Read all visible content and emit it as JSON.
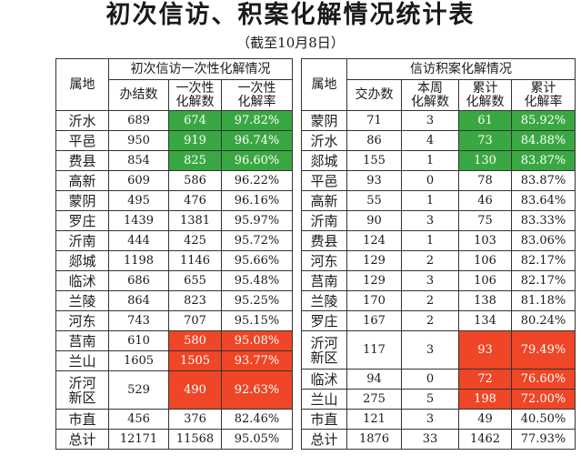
{
  "title": "初次信访、积案化解情况统计表",
  "subtitle": "（截至10月8日）",
  "colors": {
    "green": "#3aa842",
    "red": "#ee4626"
  },
  "left": {
    "group_header": "初次信访一次性化解情况",
    "col_area": "属地",
    "col_a": "办结数",
    "col_b_1": "一次性",
    "col_b_2": "化解数",
    "col_c_1": "一次性",
    "col_c_2": "化解率",
    "rows": [
      {
        "area_1": "沂水",
        "area_2": "",
        "a": "689",
        "b": "674",
        "c": "97.82%",
        "hl": "g"
      },
      {
        "area_1": "平邑",
        "area_2": "",
        "a": "950",
        "b": "919",
        "c": "96.74%",
        "hl": "g"
      },
      {
        "area_1": "费县",
        "area_2": "",
        "a": "854",
        "b": "825",
        "c": "96.60%",
        "hl": "g"
      },
      {
        "area_1": "高新",
        "area_2": "",
        "a": "609",
        "b": "586",
        "c": "96.22%",
        "hl": ""
      },
      {
        "area_1": "蒙阴",
        "area_2": "",
        "a": "495",
        "b": "476",
        "c": "96.16%",
        "hl": ""
      },
      {
        "area_1": "罗庄",
        "area_2": "",
        "a": "1439",
        "b": "1381",
        "c": "95.97%",
        "hl": ""
      },
      {
        "area_1": "沂南",
        "area_2": "",
        "a": "444",
        "b": "425",
        "c": "95.72%",
        "hl": ""
      },
      {
        "area_1": "郯城",
        "area_2": "",
        "a": "1198",
        "b": "1146",
        "c": "95.66%",
        "hl": ""
      },
      {
        "area_1": "临沭",
        "area_2": "",
        "a": "686",
        "b": "655",
        "c": "95.48%",
        "hl": ""
      },
      {
        "area_1": "兰陵",
        "area_2": "",
        "a": "864",
        "b": "823",
        "c": "95.25%",
        "hl": ""
      },
      {
        "area_1": "河东",
        "area_2": "",
        "a": "743",
        "b": "707",
        "c": "95.15%",
        "hl": ""
      },
      {
        "area_1": "莒南",
        "area_2": "",
        "a": "610",
        "b": "580",
        "c": "95.08%",
        "hl": "r"
      },
      {
        "area_1": "兰山",
        "area_2": "",
        "a": "1605",
        "b": "1505",
        "c": "93.77%",
        "hl": "r"
      },
      {
        "area_1": "沂河",
        "area_2": "新区",
        "a": "529",
        "b": "490",
        "c": "92.63%",
        "hl": "r"
      },
      {
        "area_1": "市直",
        "area_2": "",
        "a": "456",
        "b": "376",
        "c": "82.46%",
        "hl": ""
      },
      {
        "area_1": "总计",
        "area_2": "",
        "a": "12171",
        "b": "11568",
        "c": "95.05%",
        "hl": ""
      }
    ]
  },
  "right": {
    "group_header": "信访积案化解情况",
    "col_area": "属地",
    "col_a": "交办数",
    "col_b_1": "本周",
    "col_b_2": "化解数",
    "col_c_1": "累计",
    "col_c_2": "化解数",
    "col_d_1": "累计",
    "col_d_2": "化解率",
    "rows": [
      {
        "area_1": "蒙阴",
        "area_2": "",
        "a": "71",
        "b": "3",
        "c": "61",
        "d": "85.92%",
        "hl": "g"
      },
      {
        "area_1": "沂水",
        "area_2": "",
        "a": "86",
        "b": "4",
        "c": "73",
        "d": "84.88%",
        "hl": "g"
      },
      {
        "area_1": "郯城",
        "area_2": "",
        "a": "155",
        "b": "1",
        "c": "130",
        "d": "83.87%",
        "hl": "g"
      },
      {
        "area_1": "平邑",
        "area_2": "",
        "a": "93",
        "b": "0",
        "c": "78",
        "d": "83.87%",
        "hl": ""
      },
      {
        "area_1": "高新",
        "area_2": "",
        "a": "55",
        "b": "1",
        "c": "46",
        "d": "83.64%",
        "hl": ""
      },
      {
        "area_1": "沂南",
        "area_2": "",
        "a": "90",
        "b": "3",
        "c": "75",
        "d": "83.33%",
        "hl": ""
      },
      {
        "area_1": "费县",
        "area_2": "",
        "a": "124",
        "b": "1",
        "c": "103",
        "d": "83.06%",
        "hl": ""
      },
      {
        "area_1": "河东",
        "area_2": "",
        "a": "129",
        "b": "2",
        "c": "106",
        "d": "82.17%",
        "hl": ""
      },
      {
        "area_1": "莒南",
        "area_2": "",
        "a": "129",
        "b": "3",
        "c": "106",
        "d": "82.17%",
        "hl": ""
      },
      {
        "area_1": "兰陵",
        "area_2": "",
        "a": "170",
        "b": "2",
        "c": "138",
        "d": "81.18%",
        "hl": ""
      },
      {
        "area_1": "罗庄",
        "area_2": "",
        "a": "167",
        "b": "2",
        "c": "134",
        "d": "80.24%",
        "hl": ""
      },
      {
        "area_1": "沂河",
        "area_2": "新区",
        "a": "117",
        "b": "3",
        "c": "93",
        "d": "79.49%",
        "hl": "r"
      },
      {
        "area_1": "临沭",
        "area_2": "",
        "a": "94",
        "b": "0",
        "c": "72",
        "d": "76.60%",
        "hl": "r"
      },
      {
        "area_1": "兰山",
        "area_2": "",
        "a": "275",
        "b": "5",
        "c": "198",
        "d": "72.00%",
        "hl": "r"
      },
      {
        "area_1": "市直",
        "area_2": "",
        "a": "121",
        "b": "3",
        "c": "49",
        "d": "40.50%",
        "hl": ""
      },
      {
        "area_1": "总计",
        "area_2": "",
        "a": "1876",
        "b": "33",
        "c": "1462",
        "d": "77.93%",
        "hl": ""
      }
    ]
  }
}
